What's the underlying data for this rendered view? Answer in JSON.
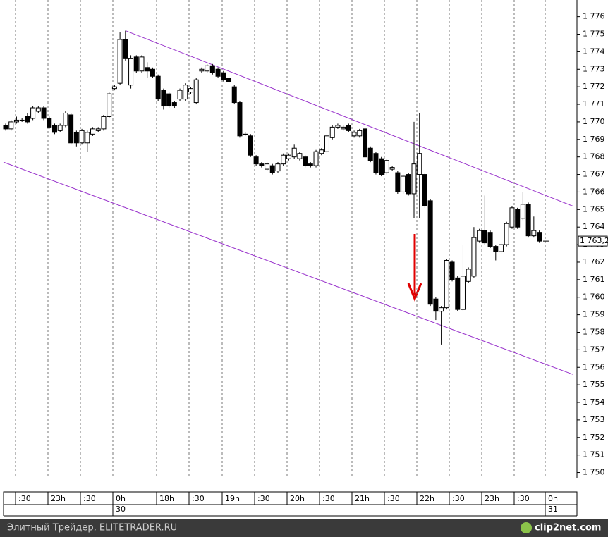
{
  "chart_data": {
    "type": "candlestick",
    "series": [
      {
        "name": "price",
        "open": [
          1769.8,
          1769.6,
          1770.0,
          1770.1,
          1770.3,
          1770.2,
          1770.6,
          1770.8,
          1770.2,
          1769.8,
          1769.5,
          1769.8,
          1770.4,
          1769.4,
          1768.8,
          1768.8,
          1769.3,
          1769.5,
          1769.6,
          1770.3,
          1771.9,
          1772.2,
          1774.7,
          1772.1,
          1773.7,
          1772.9,
          1773.1,
          1773.0,
          1772.6,
          1771.8,
          1771.6,
          1771.1,
          1771.3,
          1771.3,
          1771.7,
          1771.1,
          1772.9,
          1772.9,
          1773.2,
          1773.0,
          1772.8,
          1772.5,
          1772.0,
          1771.1,
          1769.3,
          1769.2,
          1768.0,
          1767.6,
          1767.3,
          1767.5,
          1767.2,
          1767.6,
          1767.9,
          1768.0,
          1767.9,
          1768.0,
          1767.6,
          1767.5,
          1768.2,
          1768.3,
          1769.1,
          1769.7,
          1769.6,
          1769.8,
          1769.2,
          1769.2,
          1769.6,
          1768.5,
          1768.2,
          1767.9,
          1767.1,
          1767.3,
          1767.1,
          1766.0,
          1767.0,
          1765.9,
          1767.0,
          1767.0,
          1765.5,
          1759.9,
          1759.2,
          1759.4,
          1762.0,
          1761.1,
          1759.3,
          1760.9,
          1761.2,
          1763.2,
          1763.8,
          1763.7,
          1762.9,
          1762.6,
          1763.0,
          1764.0,
          1765.0,
          1764.5,
          1765.3,
          1763.5,
          1763.7
        ],
        "high": [
          1769.9,
          1770.1,
          1770.3,
          1770.2,
          1770.5,
          1770.9,
          1770.9,
          1770.9,
          1770.3,
          1769.9,
          1769.9,
          1770.6,
          1770.5,
          1769.5,
          1769.6,
          1769.5,
          1769.7,
          1769.7,
          1770.4,
          1771.7,
          1772.1,
          1775.1,
          1775.2,
          1773.8,
          1773.8,
          1773.8,
          1773.4,
          1773.1,
          1772.7,
          1771.9,
          1771.7,
          1771.2,
          1771.9,
          1772.2,
          1772.0,
          1772.5,
          1773.1,
          1773.3,
          1773.3,
          1773.1,
          1772.9,
          1772.6,
          1772.1,
          1771.2,
          1769.4,
          1769.3,
          1768.1,
          1767.7,
          1767.7,
          1767.6,
          1767.7,
          1768.2,
          1768.2,
          1768.7,
          1768.3,
          1768.1,
          1767.7,
          1768.4,
          1768.5,
          1769.3,
          1769.8,
          1769.9,
          1769.8,
          1769.9,
          1769.5,
          1769.6,
          1769.7,
          1768.6,
          1768.3,
          1768.0,
          1767.9,
          1767.5,
          1767.2,
          1767.0,
          1767.1,
          1770.0,
          1770.5,
          1767.1,
          1765.6,
          1760.0,
          1759.5,
          1762.2,
          1762.1,
          1761.2,
          1763.0,
          1761.7,
          1764.0,
          1763.9,
          1765.8,
          1763.8,
          1763.0,
          1763.1,
          1764.3,
          1765.2,
          1765.1,
          1766.0,
          1765.4,
          1764.6,
          1763.8
        ],
        "low": [
          1769.5,
          1769.5,
          1769.9,
          1770.0,
          1769.9,
          1770.1,
          1770.5,
          1770.1,
          1769.6,
          1769.3,
          1769.4,
          1769.7,
          1768.7,
          1768.6,
          1768.7,
          1768.3,
          1769.2,
          1769.4,
          1769.5,
          1770.2,
          1771.8,
          1772.1,
          1773.5,
          1771.9,
          1772.8,
          1772.8,
          1772.5,
          1772.5,
          1771.2,
          1770.7,
          1770.8,
          1770.8,
          1771.2,
          1771.2,
          1771.6,
          1771.0,
          1772.8,
          1772.8,
          1772.7,
          1772.5,
          1772.3,
          1772.2,
          1771.0,
          1769.1,
          1769.2,
          1768.0,
          1767.5,
          1767.4,
          1767.2,
          1767.0,
          1767.1,
          1767.5,
          1767.8,
          1767.9,
          1767.8,
          1767.4,
          1767.4,
          1767.4,
          1768.1,
          1768.2,
          1769.0,
          1769.6,
          1769.5,
          1769.4,
          1769.1,
          1769.1,
          1767.9,
          1767.7,
          1767.0,
          1766.9,
          1767.0,
          1767.2,
          1765.9,
          1765.9,
          1765.8,
          1764.5,
          1764.5,
          1765.1,
          1759.5,
          1758.7,
          1757.3,
          1759.3,
          1760.9,
          1759.2,
          1759.2,
          1760.8,
          1761.1,
          1763.1,
          1763.0,
          1762.8,
          1762.1,
          1762.5,
          1762.9,
          1763.9,
          1763.9,
          1764.4,
          1763.4,
          1763.4,
          1763.1
        ],
        "close": [
          1769.6,
          1770.0,
          1770.1,
          1770.1,
          1770.0,
          1770.8,
          1770.8,
          1770.2,
          1769.7,
          1769.4,
          1769.8,
          1770.5,
          1768.8,
          1768.8,
          1769.5,
          1769.4,
          1769.6,
          1769.6,
          1770.3,
          1771.6,
          1772.0,
          1774.7,
          1773.6,
          1773.6,
          1772.9,
          1773.7,
          1772.9,
          1772.6,
          1771.3,
          1770.9,
          1770.9,
          1770.9,
          1771.8,
          1772.1,
          1771.9,
          1772.4,
          1773.0,
          1773.2,
          1772.8,
          1772.6,
          1772.4,
          1772.3,
          1771.1,
          1769.2,
          1769.3,
          1768.1,
          1767.6,
          1767.5,
          1767.6,
          1767.1,
          1767.6,
          1768.1,
          1768.1,
          1768.5,
          1768.2,
          1767.5,
          1767.5,
          1768.3,
          1768.4,
          1769.2,
          1769.7,
          1769.8,
          1769.7,
          1769.5,
          1769.4,
          1769.5,
          1768.0,
          1767.8,
          1767.1,
          1767.0,
          1767.8,
          1767.4,
          1766.0,
          1766.9,
          1765.9,
          1767.6,
          1768.2,
          1765.2,
          1759.6,
          1759.2,
          1759.4,
          1762.1,
          1761.0,
          1759.3,
          1761.2,
          1761.6,
          1763.4,
          1763.8,
          1763.1,
          1762.9,
          1762.6,
          1763.0,
          1764.2,
          1765.1,
          1764.0,
          1765.3,
          1763.5,
          1763.8,
          1763.2
        ]
      }
    ],
    "up_color": "#ffffff",
    "down_color": "#000000",
    "ylim": [
      1749.7,
      1776.95
    ],
    "yticks": [
      {
        "value": 1750,
        "label": "1 750"
      },
      {
        "value": 1751,
        "label": "1 751"
      },
      {
        "value": 1752,
        "label": "1 752"
      },
      {
        "value": 1753,
        "label": "1 753"
      },
      {
        "value": 1754,
        "label": "1 754"
      },
      {
        "value": 1755,
        "label": "1 755"
      },
      {
        "value": 1756,
        "label": "1 756"
      },
      {
        "value": 1757,
        "label": "1 757"
      },
      {
        "value": 1758,
        "label": "1 758"
      },
      {
        "value": 1759,
        "label": "1 759"
      },
      {
        "value": 1760,
        "label": "1 760"
      },
      {
        "value": 1761,
        "label": "1 761"
      },
      {
        "value": 1762,
        "label": "1 762"
      },
      {
        "value": 1763,
        "label": "1 763"
      },
      {
        "value": 1764,
        "label": "1 764"
      },
      {
        "value": 1765,
        "label": "1 765"
      },
      {
        "value": 1766,
        "label": "1 766"
      },
      {
        "value": 1767,
        "label": "1 767"
      },
      {
        "value": 1768,
        "label": "1 768"
      },
      {
        "value": 1769,
        "label": "1 769"
      },
      {
        "value": 1770,
        "label": "1 770"
      },
      {
        "value": 1771,
        "label": "1 771"
      },
      {
        "value": 1772,
        "label": "1 772"
      },
      {
        "value": 1773,
        "label": "1 773"
      },
      {
        "value": 1774,
        "label": "1 774"
      },
      {
        "value": 1775,
        "label": "1 775"
      },
      {
        "value": 1776,
        "label": "1 776"
      }
    ],
    "last_price": {
      "value": 1763.2,
      "label": "1 763,2"
    },
    "xticks": [
      ":30",
      "23h",
      ":30",
      "0h",
      "18h",
      ":30",
      "19h",
      ":30",
      "20h",
      ":30",
      "21h",
      ":30",
      "22h",
      ":30",
      "23h",
      ":30",
      "0h"
    ],
    "date_labels": [
      "30",
      "31"
    ],
    "trendlines": [
      {
        "color": "#9933cc",
        "values": [
          1775.2,
          1765.2
        ]
      },
      {
        "color": "#9933cc",
        "values": [
          1767.7,
          1755.6
        ]
      }
    ],
    "grid": true
  },
  "footer": {
    "source": "Элитный Трейдер, ELITETRADER.RU",
    "watermark": "clip2net.com"
  }
}
